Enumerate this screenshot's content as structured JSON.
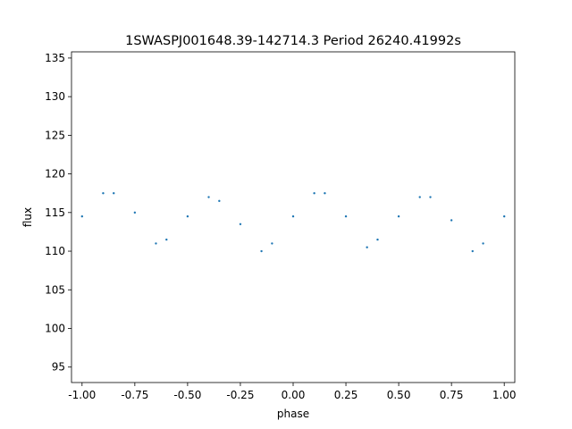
{
  "chart_data": {
    "type": "scatter",
    "title": "1SWASPJ001648.39-142714.3 Period 26240.41992s",
    "xlabel": "phase",
    "ylabel": "flux",
    "xlim": [
      -1.05,
      1.05
    ],
    "ylim": [
      93.0,
      135.8
    ],
    "xticks": [
      "-1.00",
      "-0.75",
      "-0.50",
      "-0.25",
      "0.00",
      "0.25",
      "0.50",
      "0.75",
      "1.00"
    ],
    "xtick_values": [
      -1.0,
      -0.75,
      -0.5,
      -0.25,
      0.0,
      0.25,
      0.5,
      0.75,
      1.0
    ],
    "yticks": [
      "95",
      "100",
      "105",
      "110",
      "115",
      "120",
      "125",
      "130",
      "135"
    ],
    "ytick_values": [
      95,
      100,
      105,
      110,
      115,
      120,
      125,
      130,
      135
    ],
    "grid": false,
    "marker_color": "#1f77b4",
    "series": [
      {
        "x": [
          -1.0,
          -0.9,
          -0.85,
          -0.75,
          -0.65,
          -0.6,
          -0.5,
          -0.4,
          -0.35,
          -0.25,
          -0.15,
          -0.1,
          0.0,
          0.1,
          0.15,
          0.25,
          0.35,
          0.4,
          0.5,
          0.6,
          0.65,
          0.75,
          0.85,
          0.9,
          1.0
        ],
        "y": [
          114.5,
          117.5,
          117.5,
          115.0,
          111.0,
          111.5,
          114.5,
          117.0,
          116.5,
          113.5,
          110.0,
          111.0,
          114.5,
          117.5,
          117.5,
          114.5,
          110.5,
          111.5,
          114.5,
          117.0,
          117.0,
          114.0,
          110.0,
          111.0,
          114.5
        ]
      }
    ]
  }
}
